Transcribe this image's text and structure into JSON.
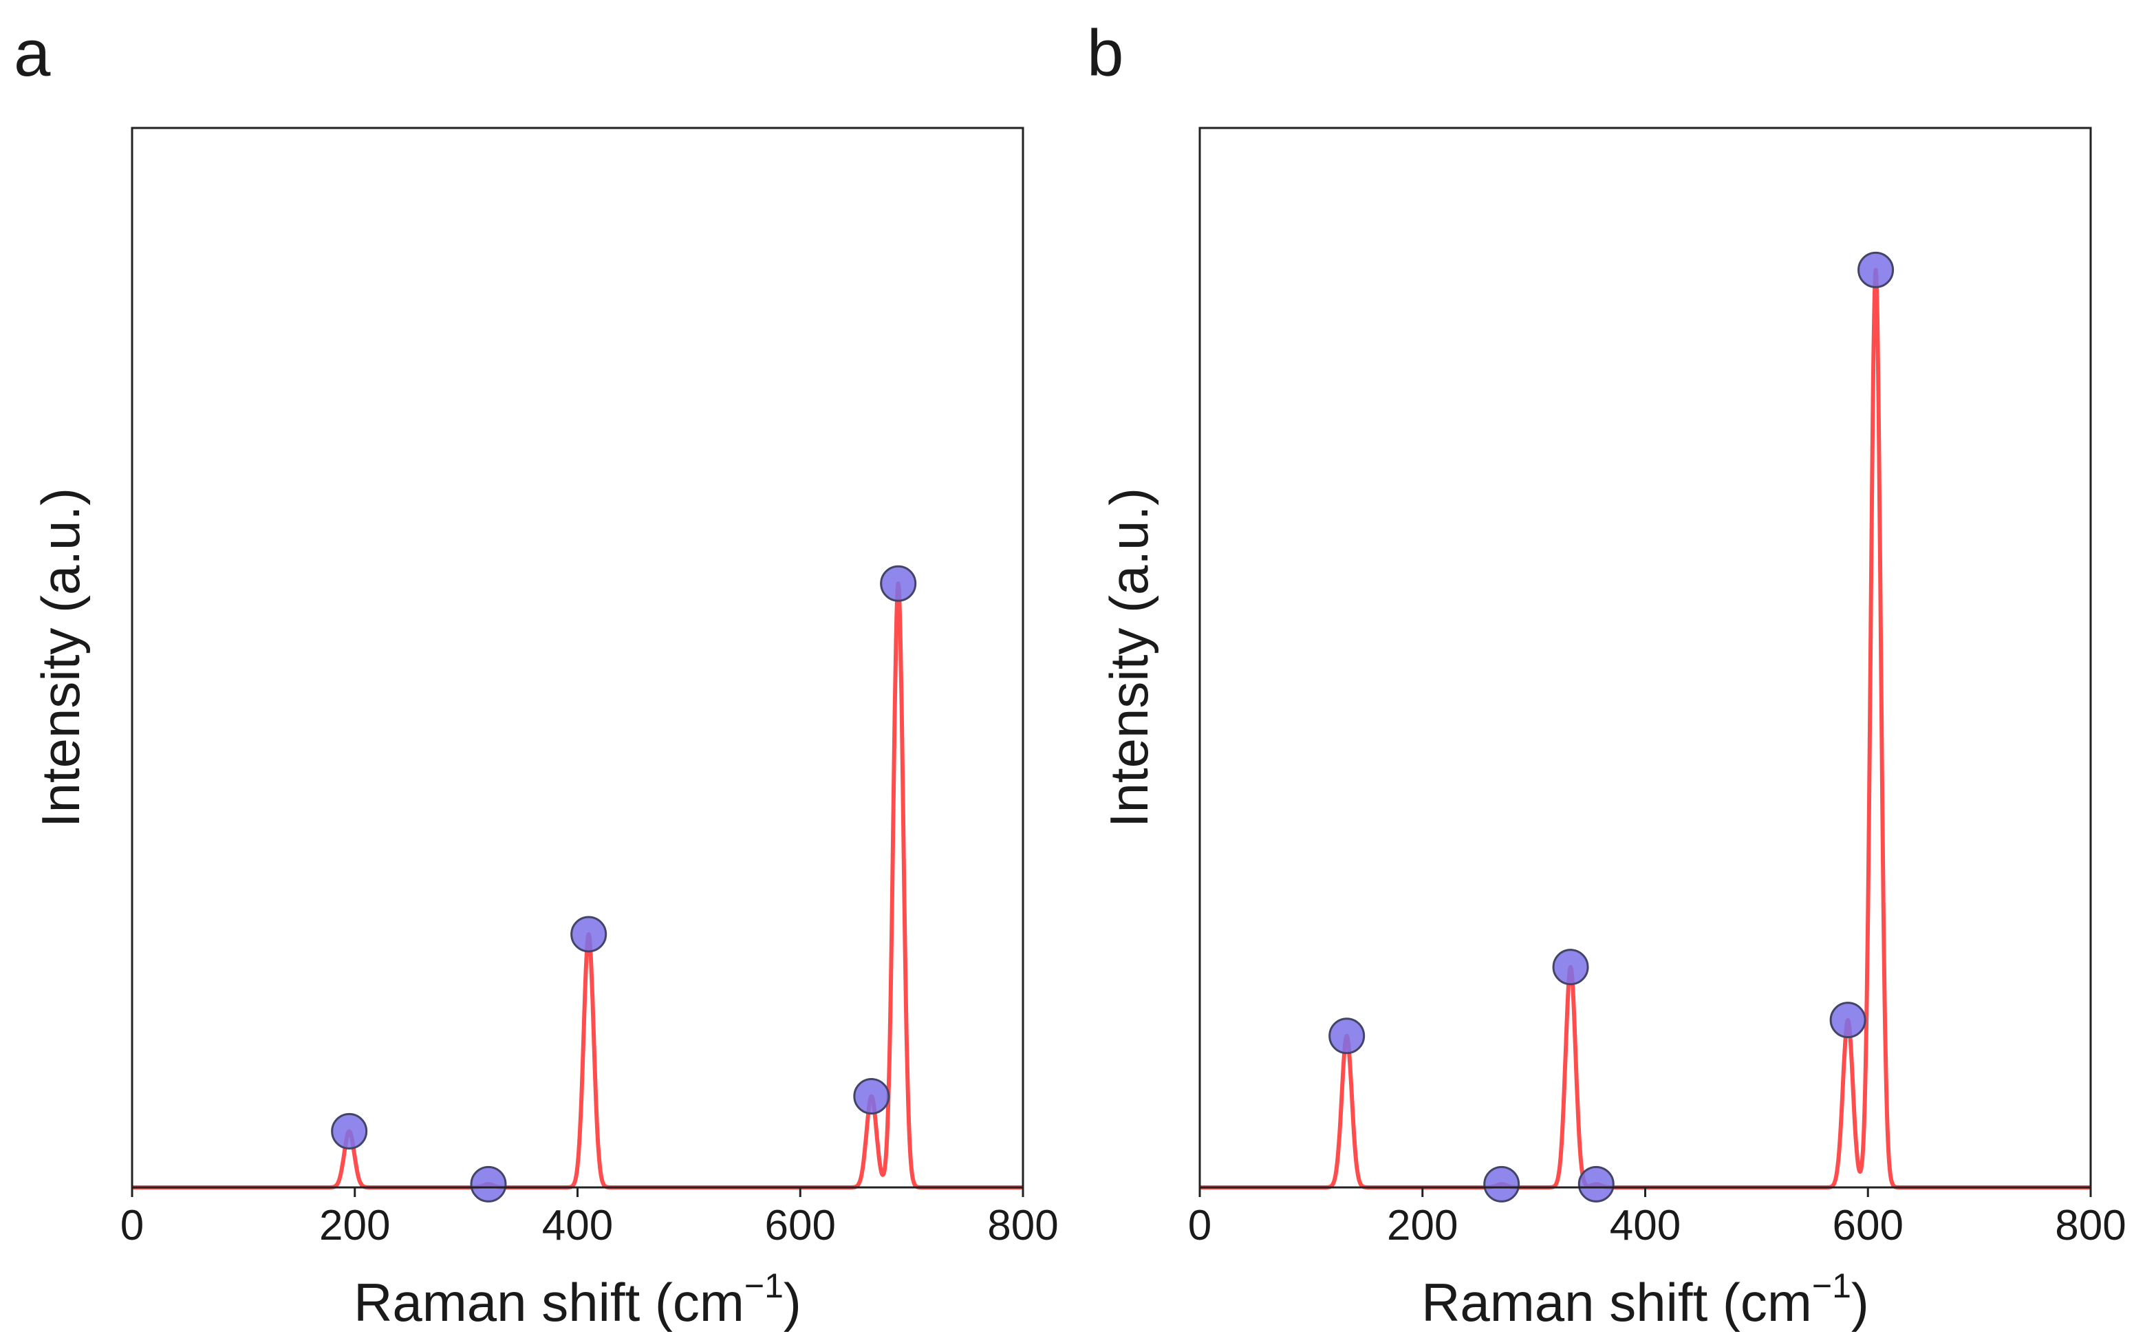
{
  "chart_data": [
    {
      "panel_label": "a",
      "type": "line",
      "xlabel": "Raman shift (cm",
      "xlabel_sup": "−1",
      "xlabel_tail": ")",
      "ylabel": "Intensity (a.u.)",
      "xlim": [
        0,
        800
      ],
      "ylim": [
        0,
        1.0
      ],
      "xticks": [
        0,
        200,
        400,
        600,
        800
      ],
      "xtick_labels": [
        "0",
        "200",
        "400",
        "600",
        "800"
      ],
      "grid": false,
      "series_color": "#ff4d4d",
      "marker_color": "#7b72e9",
      "peaks": [
        {
          "x": 195,
          "y": 0.053
        },
        {
          "x": 320,
          "y": 0.003
        },
        {
          "x": 410,
          "y": 0.239
        },
        {
          "x": 664,
          "y": 0.086
        },
        {
          "x": 688,
          "y": 0.57
        }
      ]
    },
    {
      "panel_label": "b",
      "type": "line",
      "xlabel": "Raman shift (cm",
      "xlabel_sup": "−1",
      "xlabel_tail": ")",
      "ylabel": "Intensity (a.u.)",
      "xlim": [
        0,
        800
      ],
      "ylim": [
        0,
        1.0
      ],
      "xticks": [
        0,
        200,
        400,
        600,
        800
      ],
      "xtick_labels": [
        "0",
        "200",
        "400",
        "600",
        "800"
      ],
      "grid": false,
      "series_color": "#ff4d4d",
      "marker_color": "#7b72e9",
      "peaks": [
        {
          "x": 132,
          "y": 0.143
        },
        {
          "x": 271,
          "y": 0.003
        },
        {
          "x": 333,
          "y": 0.208
        },
        {
          "x": 356,
          "y": 0.003
        },
        {
          "x": 582,
          "y": 0.158
        },
        {
          "x": 607,
          "y": 0.866
        }
      ]
    }
  ]
}
